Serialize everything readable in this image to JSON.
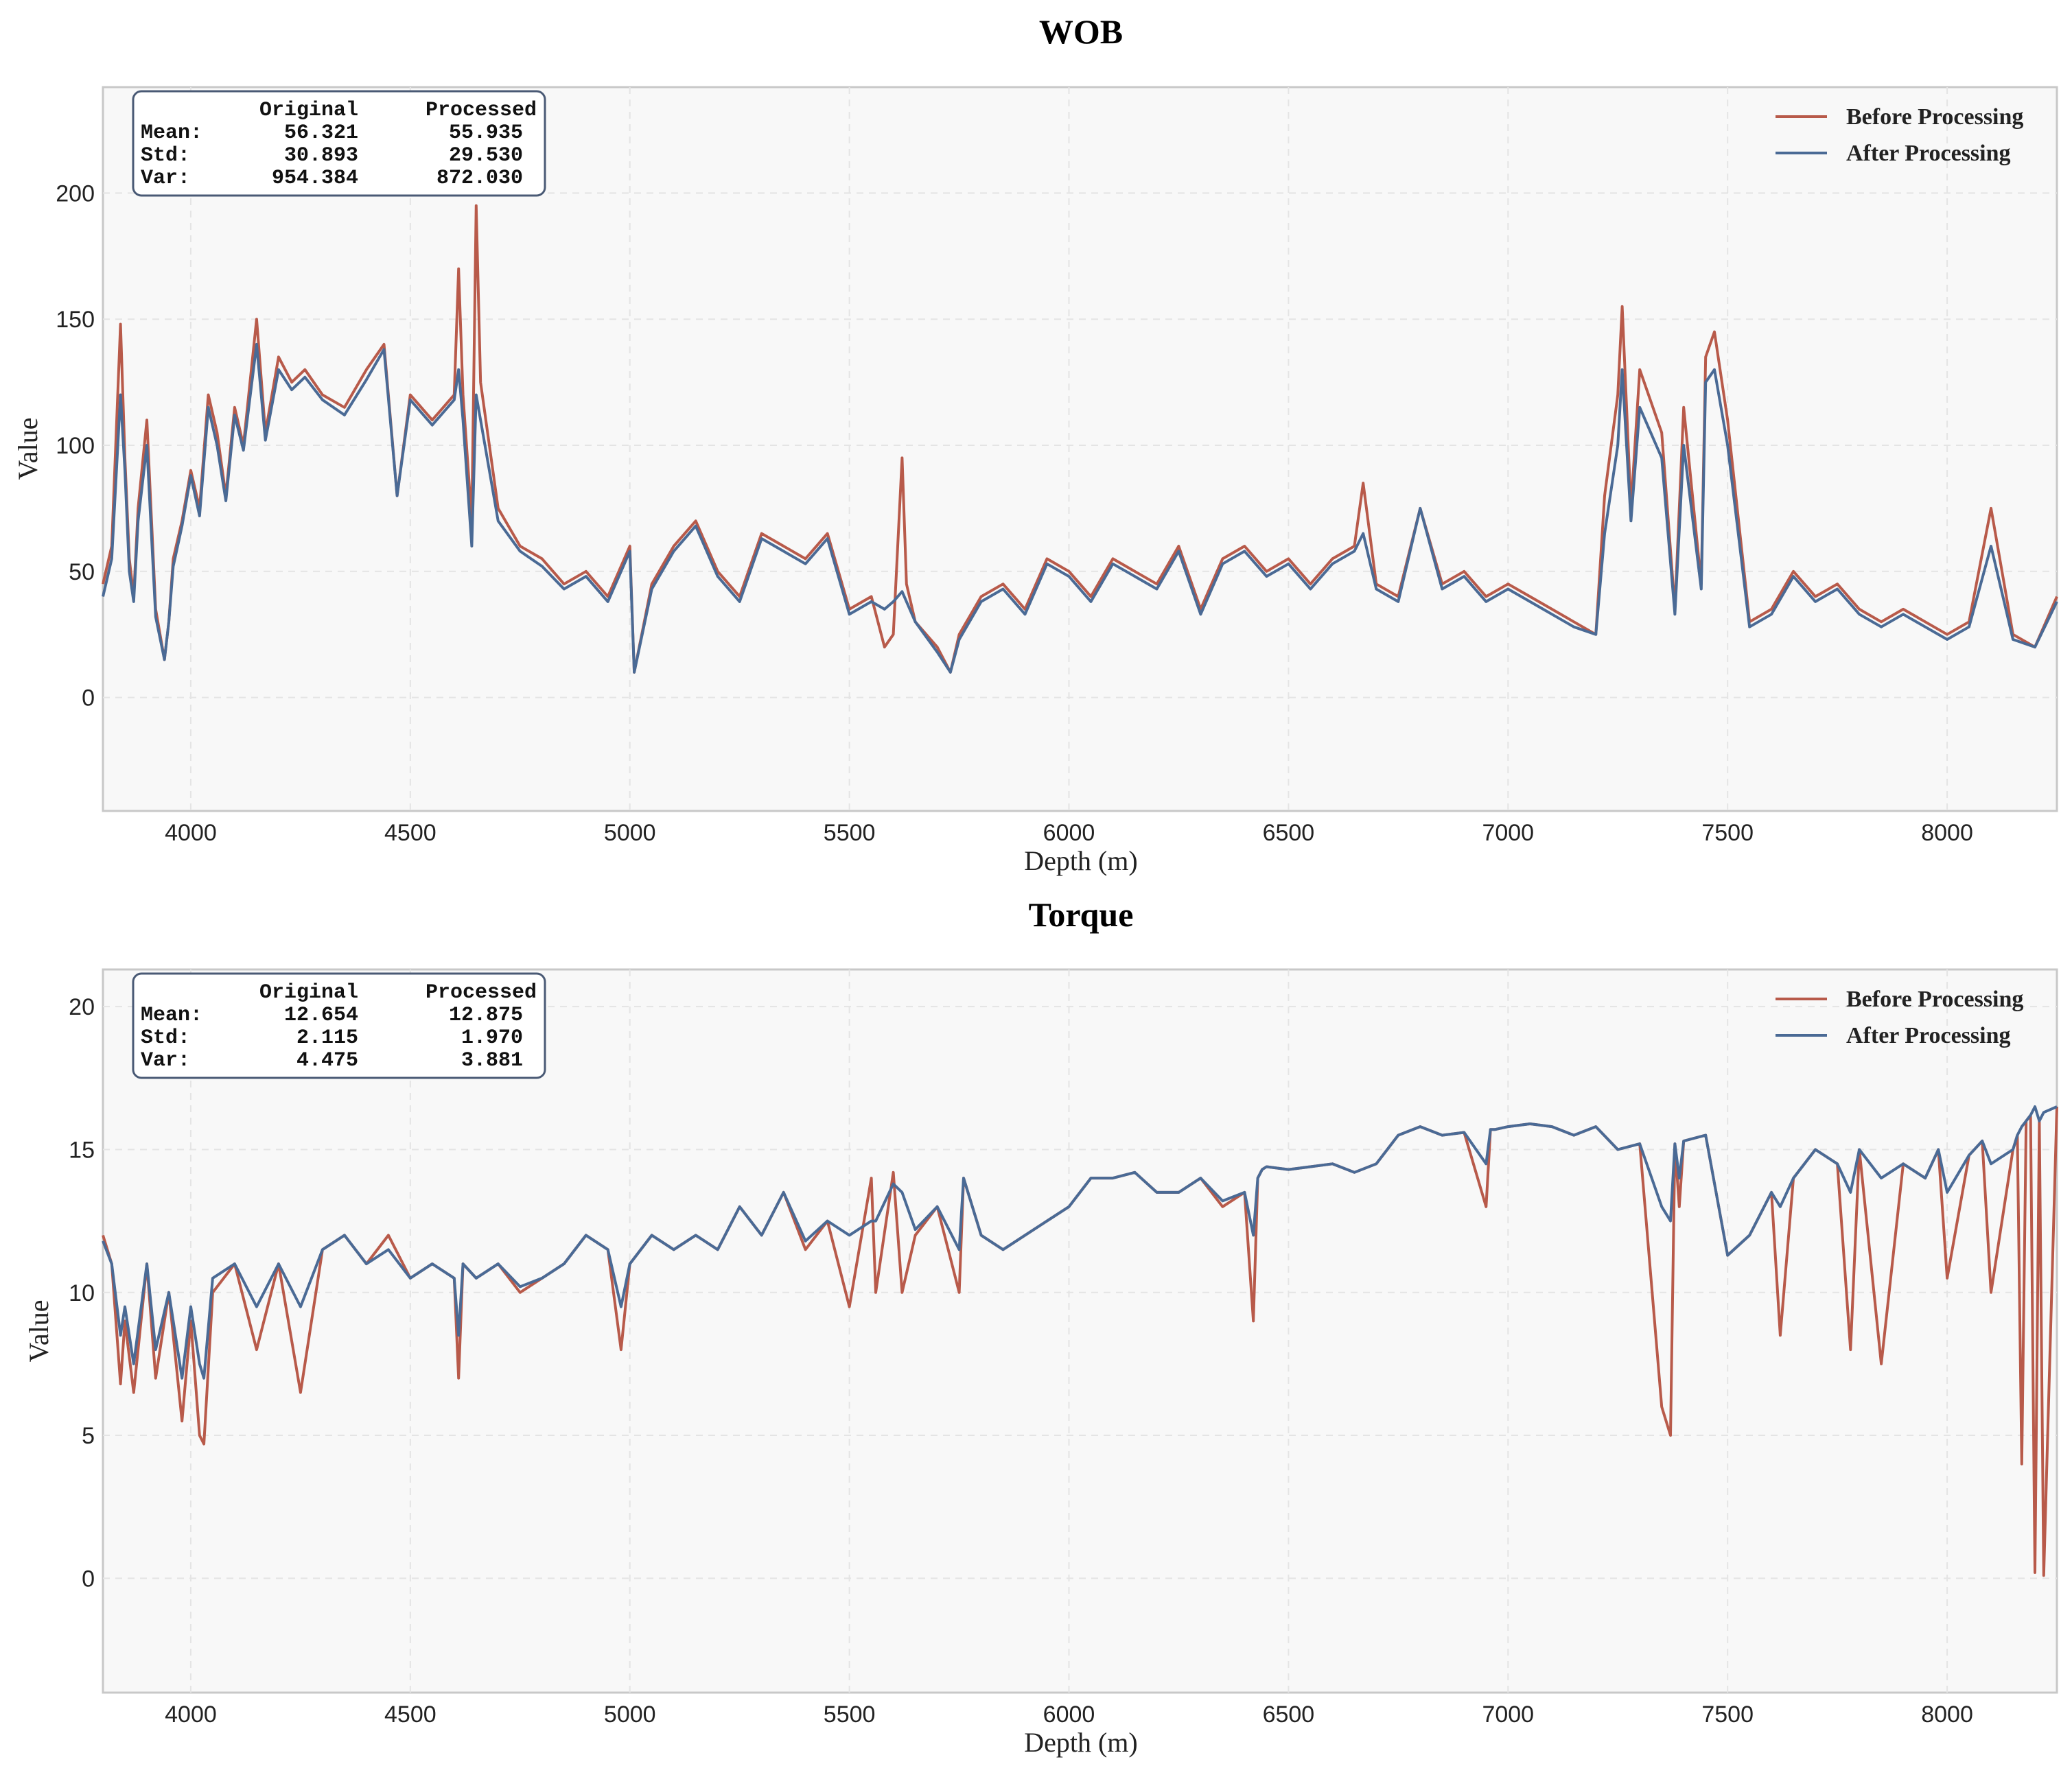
{
  "chart_data": [
    {
      "type": "line",
      "title": "WOB",
      "xlabel": "Depth (m)",
      "ylabel": "Value",
      "xlim": [
        3800,
        8250
      ],
      "ylim": [
        -45,
        242
      ],
      "xticks": [
        4000,
        4500,
        5000,
        5500,
        6000,
        6500,
        7000,
        7500,
        8000
      ],
      "yticks": [
        0,
        50,
        100,
        150,
        200
      ],
      "grid": true,
      "legend_position": "top-right",
      "stats": {
        "header": [
          "Original",
          "Processed"
        ],
        "rows": [
          {
            "label": "Mean:",
            "original": "56.321",
            "processed": "55.935"
          },
          {
            "label": "Std:",
            "original": "30.893",
            "processed": "29.530"
          },
          {
            "label": "Var:",
            "original": "954.384",
            "processed": "872.030"
          }
        ]
      },
      "series": [
        {
          "name": "Before Processing",
          "color": "#b85a4a",
          "x": [
            3800,
            3820,
            3840,
            3850,
            3860,
            3870,
            3880,
            3900,
            3920,
            3940,
            3950,
            3960,
            3980,
            4000,
            4020,
            4040,
            4060,
            4080,
            4100,
            4120,
            4150,
            4170,
            4200,
            4230,
            4260,
            4300,
            4350,
            4400,
            4440,
            4470,
            4500,
            4550,
            4600,
            4610,
            4620,
            4640,
            4650,
            4660,
            4700,
            4750,
            4800,
            4850,
            4900,
            4950,
            5000,
            5010,
            5050,
            5100,
            5150,
            5200,
            5250,
            5300,
            5350,
            5400,
            5450,
            5500,
            5550,
            5580,
            5600,
            5620,
            5630,
            5650,
            5700,
            5730,
            5750,
            5800,
            5850,
            5900,
            5950,
            6000,
            6050,
            6100,
            6150,
            6200,
            6250,
            6300,
            6350,
            6400,
            6450,
            6500,
            6550,
            6600,
            6650,
            6670,
            6700,
            6750,
            6800,
            6850,
            6900,
            6950,
            7000,
            7050,
            7100,
            7150,
            7200,
            7220,
            7250,
            7260,
            7280,
            7300,
            7350,
            7380,
            7400,
            7440,
            7450,
            7470,
            7500,
            7550,
            7600,
            7650,
            7700,
            7750,
            7800,
            7850,
            7900,
            7950,
            8000,
            8050,
            8100,
            8150,
            8200,
            8250
          ],
          "y": [
            45,
            60,
            148,
            95,
            55,
            40,
            75,
            110,
            35,
            15,
            30,
            55,
            70,
            90,
            75,
            120,
            105,
            80,
            115,
            100,
            150,
            105,
            135,
            125,
            130,
            120,
            115,
            130,
            140,
            80,
            120,
            110,
            120,
            170,
            120,
            70,
            195,
            125,
            75,
            60,
            55,
            45,
            50,
            40,
            60,
            10,
            45,
            60,
            70,
            50,
            40,
            65,
            60,
            55,
            65,
            35,
            40,
            20,
            25,
            95,
            45,
            30,
            20,
            10,
            25,
            40,
            45,
            35,
            55,
            50,
            40,
            55,
            50,
            45,
            60,
            35,
            55,
            60,
            50,
            55,
            45,
            55,
            60,
            85,
            45,
            40,
            75,
            45,
            50,
            40,
            45,
            40,
            35,
            30,
            25,
            80,
            120,
            155,
            75,
            130,
            105,
            35,
            115,
            45,
            135,
            145,
            110,
            30,
            35,
            50,
            40,
            45,
            35,
            30,
            35,
            30,
            25,
            30,
            75,
            25,
            20,
            40
          ]
        },
        {
          "name": "After Processing",
          "color": "#4a6a95",
          "x": [
            3800,
            3820,
            3840,
            3850,
            3860,
            3870,
            3880,
            3900,
            3920,
            3940,
            3950,
            3960,
            3980,
            4000,
            4020,
            4040,
            4060,
            4080,
            4100,
            4120,
            4150,
            4170,
            4200,
            4230,
            4260,
            4300,
            4350,
            4400,
            4440,
            4470,
            4500,
            4550,
            4600,
            4610,
            4620,
            4640,
            4650,
            4660,
            4700,
            4750,
            4800,
            4850,
            4900,
            4950,
            5000,
            5010,
            5050,
            5100,
            5150,
            5200,
            5250,
            5300,
            5350,
            5400,
            5450,
            5500,
            5550,
            5580,
            5600,
            5620,
            5630,
            5650,
            5700,
            5730,
            5750,
            5800,
            5850,
            5900,
            5950,
            6000,
            6050,
            6100,
            6150,
            6200,
            6250,
            6300,
            6350,
            6400,
            6450,
            6500,
            6550,
            6600,
            6650,
            6670,
            6700,
            6750,
            6800,
            6850,
            6900,
            6950,
            7000,
            7050,
            7100,
            7150,
            7200,
            7220,
            7250,
            7260,
            7280,
            7300,
            7350,
            7380,
            7400,
            7440,
            7450,
            7470,
            7500,
            7550,
            7600,
            7650,
            7700,
            7750,
            7800,
            7850,
            7900,
            7950,
            8000,
            8050,
            8100,
            8150,
            8200,
            8250
          ],
          "y": [
            40,
            55,
            120,
            90,
            50,
            38,
            70,
            100,
            32,
            15,
            30,
            52,
            68,
            88,
            72,
            115,
            100,
            78,
            112,
            98,
            140,
            102,
            130,
            122,
            127,
            118,
            112,
            126,
            138,
            80,
            118,
            108,
            118,
            130,
            110,
            60,
            120,
            110,
            70,
            58,
            52,
            43,
            48,
            38,
            58,
            10,
            43,
            58,
            68,
            48,
            38,
            63,
            58,
            53,
            63,
            33,
            38,
            35,
            38,
            42,
            38,
            30,
            18,
            10,
            23,
            38,
            43,
            33,
            53,
            48,
            38,
            53,
            48,
            43,
            58,
            33,
            53,
            58,
            48,
            53,
            43,
            53,
            58,
            65,
            43,
            38,
            75,
            43,
            48,
            38,
            43,
            38,
            33,
            28,
            25,
            65,
            100,
            130,
            70,
            115,
            95,
            33,
            100,
            43,
            125,
            130,
            100,
            28,
            33,
            48,
            38,
            43,
            33,
            28,
            33,
            28,
            23,
            28,
            60,
            23,
            20,
            38
          ]
        }
      ]
    },
    {
      "type": "line",
      "title": "Torque",
      "xlabel": "Depth (m)",
      "ylabel": "Value",
      "xlim": [
        3800,
        8250
      ],
      "ylim": [
        -4,
        21.3
      ],
      "xticks": [
        4000,
        4500,
        5000,
        5500,
        6000,
        6500,
        7000,
        7500,
        8000
      ],
      "yticks": [
        0,
        5,
        10,
        15,
        20
      ],
      "grid": true,
      "legend_position": "top-right",
      "stats": {
        "header": [
          "Original",
          "Processed"
        ],
        "rows": [
          {
            "label": "Mean:",
            "original": "12.654",
            "processed": "12.875"
          },
          {
            "label": "Std:",
            "original": "2.115",
            "processed": "1.970"
          },
          {
            "label": "Var:",
            "original": "4.475",
            "processed": "3.881"
          }
        ]
      },
      "series": [
        {
          "name": "Before Processing",
          "color": "#b85a4a",
          "x": [
            3800,
            3820,
            3840,
            3850,
            3870,
            3900,
            3920,
            3950,
            3980,
            4000,
            4020,
            4030,
            4050,
            4100,
            4150,
            4200,
            4250,
            4300,
            4350,
            4400,
            4450,
            4500,
            4550,
            4600,
            4610,
            4620,
            4650,
            4700,
            4750,
            4800,
            4850,
            4900,
            4950,
            4980,
            5000,
            5050,
            5100,
            5150,
            5200,
            5250,
            5300,
            5350,
            5400,
            5450,
            5500,
            5550,
            5560,
            5600,
            5620,
            5650,
            5700,
            5750,
            5760,
            5800,
            5850,
            5900,
            5950,
            6000,
            6050,
            6100,
            6150,
            6200,
            6250,
            6300,
            6350,
            6400,
            6420,
            6430,
            6440,
            6450,
            6500,
            6550,
            6600,
            6650,
            6700,
            6750,
            6800,
            6850,
            6900,
            6950,
            6960,
            6970,
            7000,
            7050,
            7100,
            7150,
            7200,
            7250,
            7300,
            7350,
            7370,
            7380,
            7390,
            7400,
            7450,
            7500,
            7550,
            7600,
            7620,
            7650,
            7700,
            7750,
            7780,
            7800,
            7850,
            7900,
            7950,
            7980,
            8000,
            8050,
            8080,
            8100,
            8150,
            8160,
            8170,
            8180,
            8190,
            8200,
            8210,
            8220,
            8250
          ],
          "y": [
            12,
            11,
            6.8,
            9,
            6.5,
            11,
            7,
            10,
            5.5,
            9,
            5,
            4.7,
            10,
            11,
            8,
            11,
            6.5,
            11.5,
            12,
            11,
            12,
            10.5,
            11,
            10.5,
            7,
            11,
            10.5,
            11,
            10,
            10.5,
            11,
            12,
            11.5,
            8,
            11,
            12,
            11.5,
            12,
            11.5,
            13,
            12,
            13.5,
            11.5,
            12.5,
            9.5,
            14,
            10,
            14.2,
            10,
            12,
            13,
            10,
            14,
            12,
            11.5,
            12,
            12.5,
            13,
            14,
            14,
            14.2,
            13.5,
            13.5,
            14,
            13,
            13.5,
            9,
            14,
            14.3,
            14.4,
            14.3,
            14.4,
            14.5,
            14.2,
            14.5,
            15.5,
            15.8,
            15.5,
            15.6,
            13,
            15.7,
            15.7,
            15.8,
            15.9,
            15.8,
            15.5,
            15.8,
            15.0,
            15.2,
            6,
            5,
            15.2,
            13,
            15.3,
            15.5,
            11.3,
            12,
            13.5,
            8.5,
            14,
            15,
            14.5,
            8,
            15,
            7.5,
            14.5,
            14,
            15,
            10.5,
            14.8,
            15.3,
            10,
            15,
            15.5,
            4,
            16,
            16.2,
            0.2,
            16,
            0.1,
            16.5
          ]
        },
        {
          "name": "After Processing",
          "color": "#4a6a95",
          "x": [
            3800,
            3820,
            3840,
            3850,
            3870,
            3900,
            3920,
            3950,
            3980,
            4000,
            4020,
            4030,
            4050,
            4100,
            4150,
            4200,
            4250,
            4300,
            4350,
            4400,
            4450,
            4500,
            4550,
            4600,
            4610,
            4620,
            4650,
            4700,
            4750,
            4800,
            4850,
            4900,
            4950,
            4980,
            5000,
            5050,
            5100,
            5150,
            5200,
            5250,
            5300,
            5350,
            5400,
            5450,
            5500,
            5550,
            5560,
            5600,
            5620,
            5650,
            5700,
            5750,
            5760,
            5800,
            5850,
            5900,
            5950,
            6000,
            6050,
            6100,
            6150,
            6200,
            6250,
            6300,
            6350,
            6400,
            6420,
            6430,
            6440,
            6450,
            6500,
            6550,
            6600,
            6650,
            6700,
            6750,
            6800,
            6850,
            6900,
            6950,
            6960,
            6970,
            7000,
            7050,
            7100,
            7150,
            7200,
            7250,
            7300,
            7350,
            7370,
            7380,
            7390,
            7400,
            7450,
            7500,
            7550,
            7600,
            7620,
            7650,
            7700,
            7750,
            7780,
            7800,
            7850,
            7900,
            7950,
            7980,
            8000,
            8050,
            8080,
            8100,
            8150,
            8160,
            8170,
            8180,
            8190,
            8200,
            8210,
            8220,
            8250
          ],
          "y": [
            11.8,
            11,
            8.5,
            9.5,
            7.5,
            11,
            8,
            10,
            7,
            9.5,
            7.5,
            7,
            10.5,
            11,
            9.5,
            11,
            9.5,
            11.5,
            12,
            11,
            11.5,
            10.5,
            11,
            10.5,
            8.5,
            11,
            10.5,
            11,
            10.2,
            10.5,
            11,
            12,
            11.5,
            9.5,
            11,
            12,
            11.5,
            12,
            11.5,
            13,
            12,
            13.5,
            11.8,
            12.5,
            12,
            12.5,
            12.5,
            13.8,
            13.5,
            12.2,
            13,
            11.5,
            14,
            12,
            11.5,
            12,
            12.5,
            13,
            14,
            14,
            14.2,
            13.5,
            13.5,
            14,
            13.2,
            13.5,
            12,
            14,
            14.3,
            14.4,
            14.3,
            14.4,
            14.5,
            14.2,
            14.5,
            15.5,
            15.8,
            15.5,
            15.6,
            14.5,
            15.7,
            15.7,
            15.8,
            15.9,
            15.8,
            15.5,
            15.8,
            15.0,
            15.2,
            13,
            12.5,
            15.2,
            14,
            15.3,
            15.5,
            11.3,
            12,
            13.5,
            13,
            14,
            15,
            14.5,
            13.5,
            15,
            14,
            14.5,
            14,
            15,
            13.5,
            14.8,
            15.3,
            14.5,
            15,
            15.5,
            15.8,
            16,
            16.2,
            16.5,
            16,
            16.3,
            16.5
          ]
        }
      ]
    }
  ]
}
